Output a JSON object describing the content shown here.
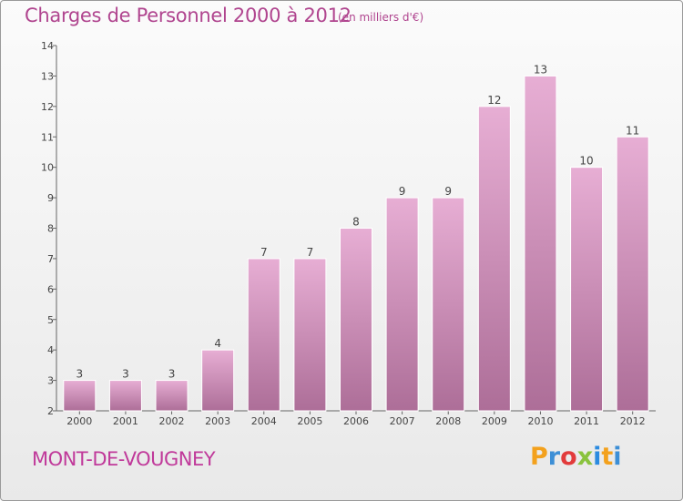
{
  "header": {
    "title": "Charges de Personnel 2000 à 2012",
    "subtitle": "(en milliers d'€)"
  },
  "footer": {
    "commune": "MONT-DE-VOUGNEY",
    "logo": "Proxiti"
  },
  "colors": {
    "title": "#b0458f",
    "bar_top": "#e7aed4",
    "bar_bottom": "#ad6e98",
    "logo_letters": [
      "#f3a11d",
      "#3d8fd6",
      "#e23b3b",
      "#8ac33e",
      "#2b8be0",
      "#f3a11d",
      "#3d8fd6"
    ]
  },
  "chart_data": {
    "type": "bar",
    "categories": [
      "2000",
      "2001",
      "2002",
      "2003",
      "2004",
      "2005",
      "2006",
      "2007",
      "2008",
      "2009",
      "2010",
      "2011",
      "2012"
    ],
    "values": [
      3,
      3,
      3,
      4,
      7,
      7,
      8,
      9,
      9,
      12,
      13,
      10,
      11
    ],
    "title": "Charges de Personnel 2000 à 2012",
    "ylim": [
      2,
      14
    ],
    "yticks": [
      2,
      3,
      4,
      5,
      6,
      7,
      8,
      9,
      10,
      11,
      12,
      13,
      14
    ],
    "grid": false,
    "legend": "none"
  }
}
